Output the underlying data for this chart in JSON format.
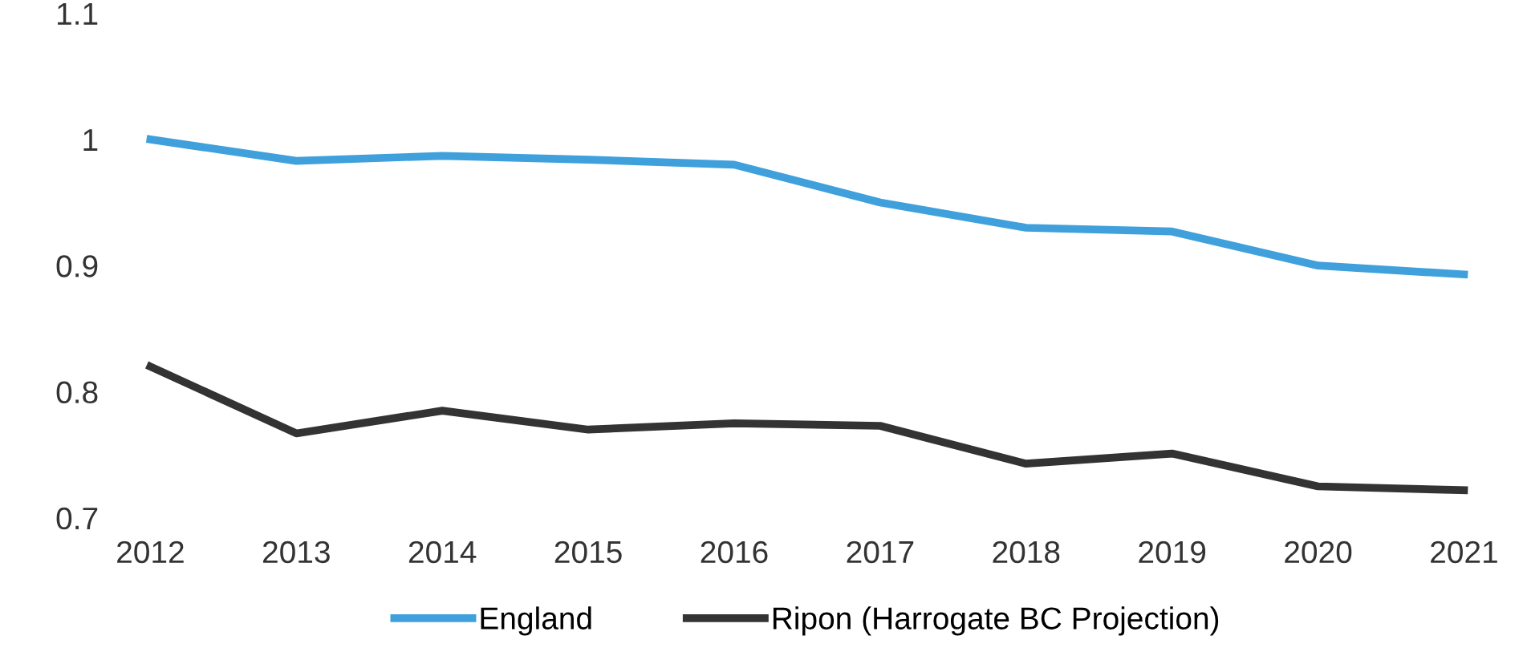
{
  "chart_data": {
    "type": "line",
    "categories": [
      "2012",
      "2013",
      "2014",
      "2015",
      "2016",
      "2017",
      "2018",
      "2019",
      "2020",
      "2021"
    ],
    "series": [
      {
        "name": "England",
        "color": "#3fa0dc",
        "values": [
          1.0,
          0.983,
          0.987,
          0.984,
          0.98,
          0.95,
          0.93,
          0.927,
          0.9,
          0.893
        ]
      },
      {
        "name": "Ripon (Harrogate BC Projection)",
        "color": "#333333",
        "values": [
          0.82,
          0.767,
          0.785,
          0.77,
          0.775,
          0.773,
          0.743,
          0.751,
          0.725,
          0.722
        ]
      }
    ],
    "ylim": [
      0.7,
      1.1
    ],
    "yticks": [
      0.7,
      0.8,
      0.9,
      1,
      1.1
    ],
    "grid": false,
    "legend": "bottom",
    "marker": "none",
    "line_style": "solid"
  }
}
